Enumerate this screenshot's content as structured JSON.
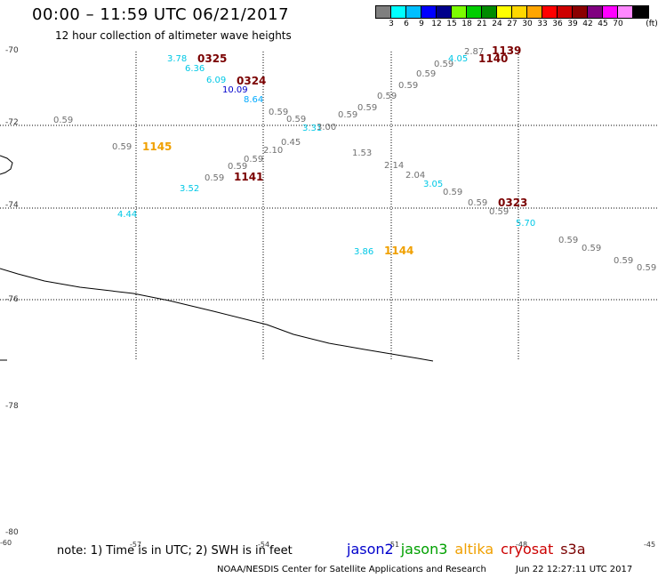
{
  "title": "00:00 – 11:59 UTC 06/21/2017",
  "subtitle": "12 hour collection of altimeter wave heights",
  "legend": {
    "unit": "(ft)",
    "colors": [
      "#7f7f7f",
      "#00ffff",
      "#00bfff",
      "#0000ff",
      "#00008b",
      "#7cfc00",
      "#00cd00",
      "#008b00",
      "#ffff00",
      "#ffd700",
      "#ffa500",
      "#ff0000",
      "#cd0000",
      "#8b0000",
      "#800080",
      "#ff00ff",
      "#ff88ff",
      "#000000"
    ],
    "labels": [
      "3",
      "6",
      "9",
      "12",
      "15",
      "18",
      "21",
      "24",
      "27",
      "30",
      "33",
      "36",
      "39",
      "42",
      "45",
      "70"
    ]
  },
  "lat_labels": [
    "-70",
    "-72",
    "-74",
    "-76",
    "-78",
    "-80"
  ],
  "lon_labels": [
    "-60",
    "-57",
    "-54",
    "-51",
    "-48",
    "-45"
  ],
  "wave_labels": [
    {
      "text": "3.78",
      "color": "#00c8e6"
    },
    {
      "text": "6.36",
      "color": "#00c8e6"
    },
    {
      "text": "6.09",
      "color": "#00c8e6"
    },
    {
      "text": "10.09",
      "color": "#0000cc"
    },
    {
      "text": "8.64",
      "color": "#00aaff"
    },
    {
      "text": "0.59",
      "color": "#707070"
    },
    {
      "text": "0.59",
      "color": "#707070"
    },
    {
      "text": "3.31",
      "color": "#00c8e6"
    },
    {
      "text": "3.00",
      "color": "#707070"
    },
    {
      "text": "0.59",
      "color": "#707070"
    },
    {
      "text": "0.59",
      "color": "#707070"
    },
    {
      "text": "0.59",
      "color": "#707070"
    },
    {
      "text": "0.59",
      "color": "#707070"
    },
    {
      "text": "0.59",
      "color": "#707070"
    },
    {
      "text": "0.59",
      "color": "#707070"
    },
    {
      "text": "4.05",
      "color": "#00c8e6"
    },
    {
      "text": "2.87",
      "color": "#707070"
    },
    {
      "text": "0.59",
      "color": "#707070"
    },
    {
      "text": "0.59",
      "color": "#707070"
    },
    {
      "text": "0.45",
      "color": "#707070"
    },
    {
      "text": "2.10",
      "color": "#707070"
    },
    {
      "text": "0.59",
      "color": "#707070"
    },
    {
      "text": "0.59",
      "color": "#707070"
    },
    {
      "text": "0.59",
      "color": "#707070"
    },
    {
      "text": "3.52",
      "color": "#00c8e6"
    },
    {
      "text": "4.44",
      "color": "#00c8e6"
    },
    {
      "text": "1.53",
      "color": "#707070"
    },
    {
      "text": "2.14",
      "color": "#707070"
    },
    {
      "text": "2.04",
      "color": "#707070"
    },
    {
      "text": "3.05",
      "color": "#00c8e6"
    },
    {
      "text": "0.59",
      "color": "#707070"
    },
    {
      "text": "0.59",
      "color": "#707070"
    },
    {
      "text": "0.59",
      "color": "#707070"
    },
    {
      "text": "5.70",
      "color": "#00c8e6"
    },
    {
      "text": "0.59",
      "color": "#707070"
    },
    {
      "text": "0.59",
      "color": "#707070"
    },
    {
      "text": "0.59",
      "color": "#707070"
    },
    {
      "text": "0.59",
      "color": "#707070"
    },
    {
      "text": "3.86",
      "color": "#00c8e6"
    },
    {
      "text": "0.59",
      "color": "#707070"
    },
    {
      "text": "2.38",
      "color": "#707070"
    }
  ],
  "time_labels": [
    {
      "text": "0325",
      "color": "#7a0000"
    },
    {
      "text": "0324",
      "color": "#7a0000"
    },
    {
      "text": "1139",
      "color": "#7a0000"
    },
    {
      "text": "1140",
      "color": "#7a0000"
    },
    {
      "text": "1145",
      "color": "#f0a000"
    },
    {
      "text": "1141",
      "color": "#7a0000"
    },
    {
      "text": "0323",
      "color": "#7a0000"
    },
    {
      "text": "1144",
      "color": "#f0a000"
    }
  ],
  "note": "note: 1) Time is in UTC; 2) SWH is in feet",
  "satellites": [
    {
      "name": "jason2",
      "color": "#0000cc"
    },
    {
      "name": "jason3",
      "color": "#00a000"
    },
    {
      "name": "altika",
      "color": "#f0a000"
    },
    {
      "name": "cryosat",
      "color": "#cc0000"
    },
    {
      "name": "s3a",
      "color": "#7a0000"
    }
  ],
  "credit": "NOAA/NESDIS Center for Satellite Applications and Research",
  "timestamp": "Jun 22 12:27:11 UTC 2017"
}
